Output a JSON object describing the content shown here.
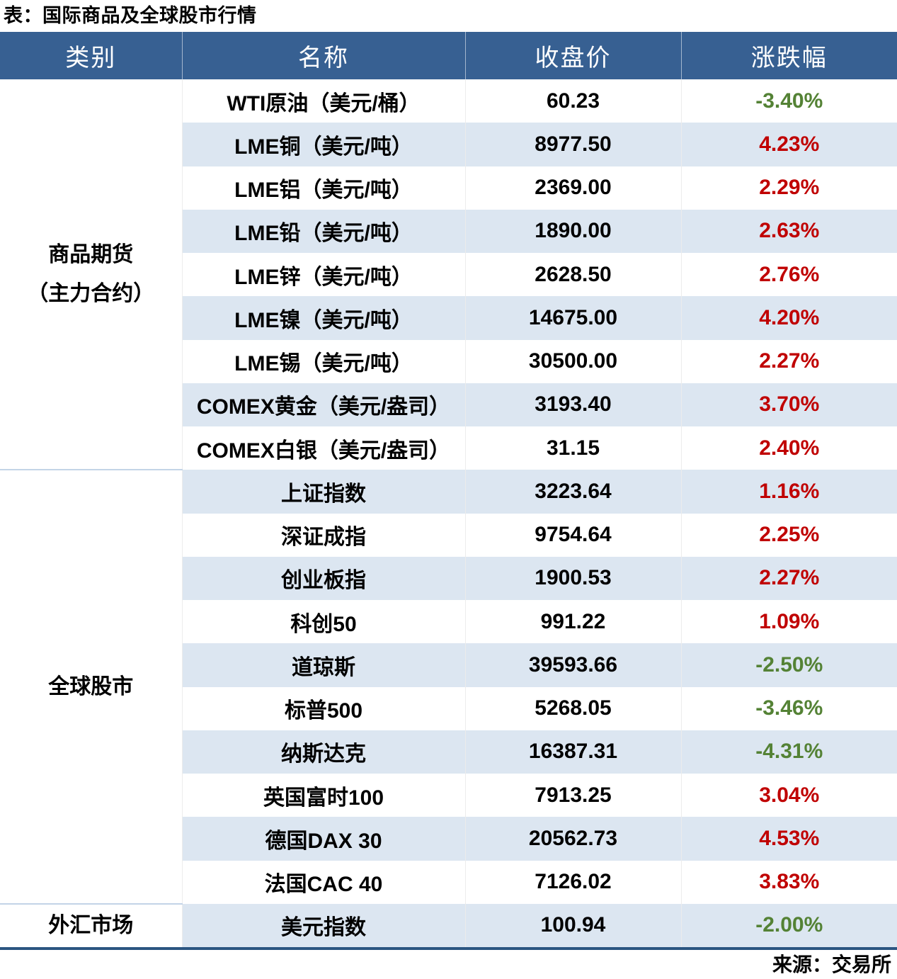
{
  "chart_data": {
    "type": "table",
    "title": "表：国际商品及全球股市行情",
    "source": "来源：交易所",
    "columns": [
      "类别",
      "名称",
      "收盘价",
      "涨跌幅"
    ],
    "groups": [
      {
        "category": "商品期货（主力合约）",
        "category_lines": [
          "商品期货",
          "（主力合约）"
        ],
        "rows": [
          {
            "name": "WTI原油（美元/桶）",
            "close": "60.23",
            "change": "-3.40%"
          },
          {
            "name": "LME铜（美元/吨）",
            "close": "8977.50",
            "change": "4.23%"
          },
          {
            "name": "LME铝（美元/吨）",
            "close": "2369.00",
            "change": "2.29%"
          },
          {
            "name": "LME铅（美元/吨）",
            "close": "1890.00",
            "change": "2.63%"
          },
          {
            "name": "LME锌（美元/吨）",
            "close": "2628.50",
            "change": "2.76%"
          },
          {
            "name": "LME镍（美元/吨）",
            "close": "14675.00",
            "change": "4.20%"
          },
          {
            "name": "LME锡（美元/吨）",
            "close": "30500.00",
            "change": "2.27%"
          },
          {
            "name": "COMEX黄金（美元/盎司）",
            "close": "3193.40",
            "change": "3.70%"
          },
          {
            "name": "COMEX白银（美元/盎司）",
            "close": "31.15",
            "change": "2.40%"
          }
        ]
      },
      {
        "category": "全球股市",
        "category_lines": [
          "全球股市"
        ],
        "rows": [
          {
            "name": "上证指数",
            "close": "3223.64",
            "change": "1.16%"
          },
          {
            "name": "深证成指",
            "close": "9754.64",
            "change": "2.25%"
          },
          {
            "name": "创业板指",
            "close": "1900.53",
            "change": "2.27%"
          },
          {
            "name": "科创50",
            "close": "991.22",
            "change": "1.09%"
          },
          {
            "name": "道琼斯",
            "close": "39593.66",
            "change": "-2.50%"
          },
          {
            "name": "标普500",
            "close": "5268.05",
            "change": "-3.46%"
          },
          {
            "name": "纳斯达克",
            "close": "16387.31",
            "change": "-4.31%"
          },
          {
            "name": "英国富时100",
            "close": "7913.25",
            "change": "3.04%"
          },
          {
            "name": "德国DAX 30",
            "close": "20562.73",
            "change": "4.53%"
          },
          {
            "name": "法国CAC 40",
            "close": "7126.02",
            "change": "3.83%"
          }
        ]
      },
      {
        "category": "外汇市场",
        "category_lines": [
          "外汇市场"
        ],
        "rows": [
          {
            "name": "美元指数",
            "close": "100.94",
            "change": "-2.00%"
          }
        ]
      }
    ]
  },
  "colors": {
    "header_bg": "#376092",
    "header_text": "#FFFFFF",
    "stripe_bg": "#DCE6F1",
    "positive_red": "#C00000",
    "negative_green": "#548235",
    "group_divider": "#C3D4E7",
    "bottom_bar": "#2B5581"
  }
}
